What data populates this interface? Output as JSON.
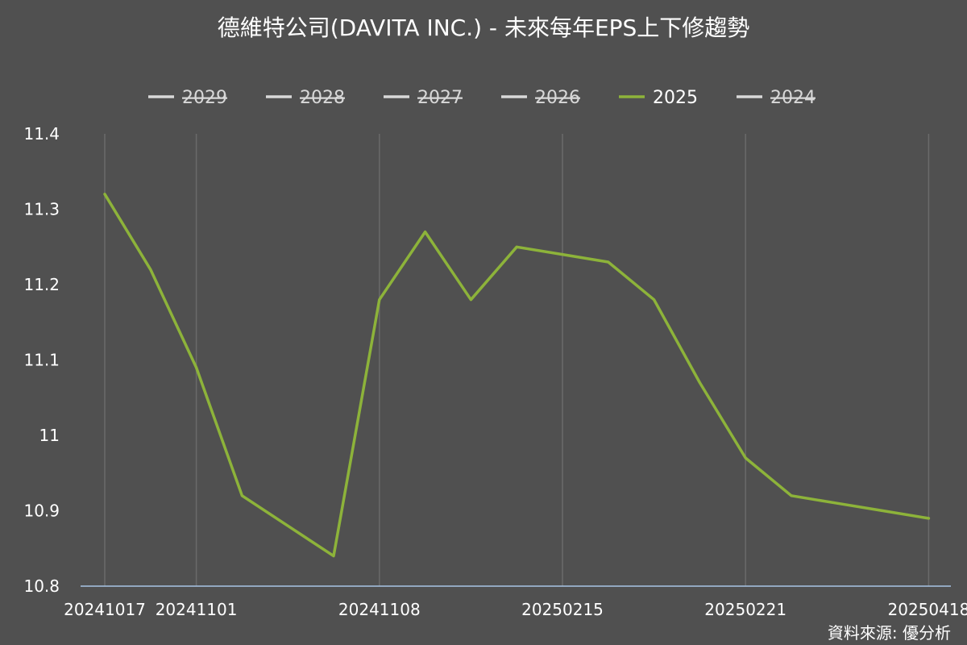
{
  "chart_data": {
    "type": "line",
    "title": "德維特公司(DAVITA INC.) - 未來每年EPS上下修趨勢",
    "source": "資料來源: 優分析",
    "legend_position": "top",
    "legend": [
      {
        "name": "2029",
        "color": "#d8d8d8",
        "hidden": true
      },
      {
        "name": "2028",
        "color": "#d8d8d8",
        "hidden": true
      },
      {
        "name": "2027",
        "color": "#d8d8d8",
        "hidden": true
      },
      {
        "name": "2026",
        "color": "#d8d8d8",
        "hidden": true
      },
      {
        "name": "2025",
        "color": "#8db33a",
        "hidden": false
      },
      {
        "name": "2024",
        "color": "#d8d8d8",
        "hidden": true
      }
    ],
    "x_tick_labels": [
      "20241017",
      "20241101",
      "20241108",
      "20250215",
      "20250221",
      "20250418"
    ],
    "y_tick_labels": [
      "10.8",
      "10.9",
      "11",
      "11.1",
      "11.2",
      "11.3",
      "11.4"
    ],
    "ylim": [
      10.8,
      11.4
    ],
    "grid": "vertical",
    "series": [
      {
        "name": "2025",
        "color": "#8db33a",
        "values": [
          11.32,
          11.22,
          11.09,
          10.92,
          10.88,
          10.84,
          11.18,
          11.27,
          11.18,
          11.25,
          11.24,
          11.23,
          11.18,
          11.07,
          10.97,
          10.92,
          10.91,
          10.9,
          10.89
        ]
      }
    ]
  }
}
